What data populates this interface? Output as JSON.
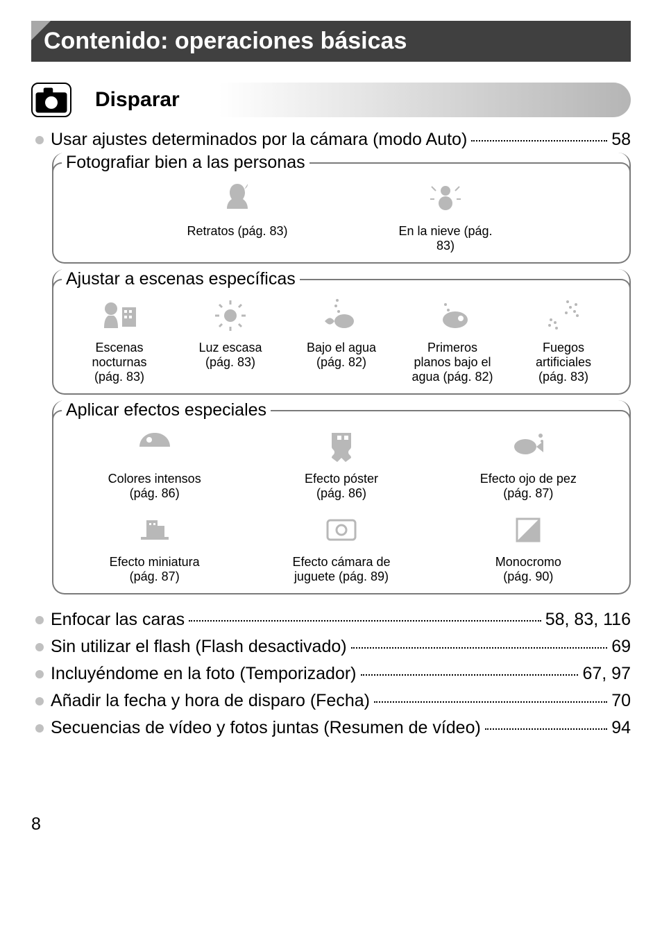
{
  "colors": {
    "banner_bg": "#404040",
    "banner_text": "#ffffff",
    "triangle": "#a8a8a8",
    "border": "#7a7a7a",
    "bullet": "#c0c0c0",
    "icon_gray": "#b8b8b8",
    "text": "#000000",
    "background": "#ffffff"
  },
  "typography": {
    "banner_fontsize_pt": 26,
    "section_title_fontsize_pt": 23,
    "body_fontsize_pt": 19,
    "caption_fontsize_pt": 14
  },
  "banner_title": "Contenido: operaciones básicas",
  "section": {
    "icon": "camera-icon",
    "title": "Disparar"
  },
  "top_toc": {
    "label": "Usar ajustes determinados por la cámara (modo Auto)",
    "page": "58"
  },
  "boxes": [
    {
      "title": "Fotografiar bien a las personas",
      "layout": "two",
      "items": [
        {
          "icon": "portrait-icon",
          "label_line1": "Retratos (pág. 83)",
          "label_line2": ""
        },
        {
          "icon": "snow-icon",
          "label_line1": "En la nieve (pág. 83)",
          "label_line2": ""
        }
      ]
    },
    {
      "title": "Ajustar a escenas específicas",
      "layout": "five",
      "items": [
        {
          "icon": "night-scene-icon",
          "label_line1": "Escenas",
          "label_line2": "nocturnas",
          "label_line3": "(pág. 83)"
        },
        {
          "icon": "low-light-icon",
          "label_line1": "Luz escasa",
          "label_line2": "(pág. 83)",
          "label_line3": ""
        },
        {
          "icon": "underwater-icon",
          "label_line1": "Bajo el agua",
          "label_line2": "(pág. 82)",
          "label_line3": ""
        },
        {
          "icon": "underwater-macro-icon",
          "label_line1": "Primeros",
          "label_line2": "planos bajo el",
          "label_line3": "agua (pág. 82)"
        },
        {
          "icon": "fireworks-icon",
          "label_line1": "Fuegos",
          "label_line2": "artificiales",
          "label_line3": "(pág. 83)"
        }
      ]
    },
    {
      "title": "Aplicar efectos especiales",
      "layout": "three-two-rows",
      "items_row1": [
        {
          "icon": "vivid-icon",
          "label_line1": "Colores intensos",
          "label_line2": "(pág. 86)"
        },
        {
          "icon": "poster-icon",
          "label_line1": "Efecto póster",
          "label_line2": "(pág. 86)"
        },
        {
          "icon": "fisheye-icon",
          "label_line1": "Efecto ojo de pez",
          "label_line2": "(pág. 87)"
        }
      ],
      "items_row2": [
        {
          "icon": "miniature-icon",
          "label_line1": "Efecto miniatura",
          "label_line2": "(pág. 87)"
        },
        {
          "icon": "toy-camera-icon",
          "label_line1": "Efecto cámara de",
          "label_line2": "juguete (pág. 89)"
        },
        {
          "icon": "monochrome-icon",
          "label_line1": "Monocromo",
          "label_line2": "(pág. 90)"
        }
      ]
    }
  ],
  "bottom_toc": [
    {
      "label": "Enfocar las caras",
      "page": "58, 83, 116"
    },
    {
      "label": "Sin utilizar el flash (Flash desactivado)",
      "page": "69"
    },
    {
      "label": "Incluyéndome en la foto (Temporizador)",
      "page": "67, 97"
    },
    {
      "label": "Añadir la fecha y hora de disparo (Fecha)",
      "page": "70"
    },
    {
      "label": "Secuencias de vídeo y fotos juntas (Resumen de vídeo)",
      "page": "94"
    }
  ],
  "page_number": "8"
}
